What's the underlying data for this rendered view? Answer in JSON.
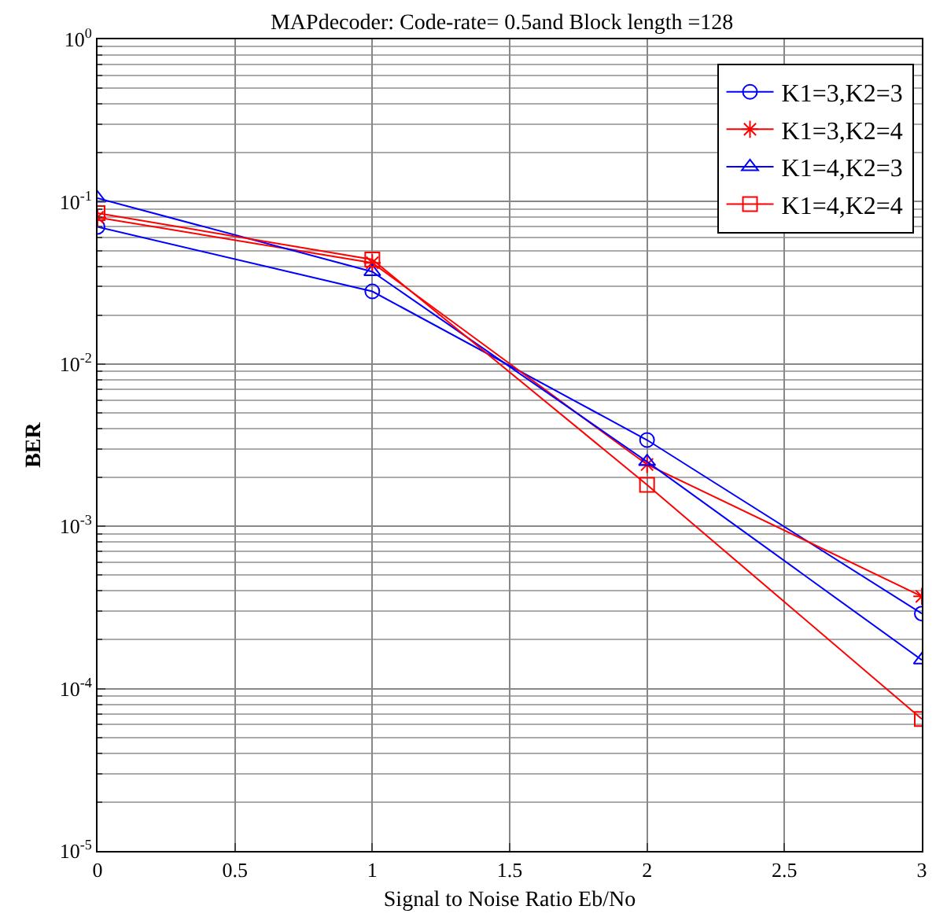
{
  "chart_data": {
    "type": "line",
    "title": "MAPdecoder: Code-rate= 0.5and Block length =128",
    "xlabel": "Signal to Noise Ratio Eb/No",
    "ylabel": "BER",
    "x": [
      0,
      1,
      2,
      3
    ],
    "series": [
      {
        "name": "K1=3,K2=3",
        "color": "#0000ff",
        "marker": "circle",
        "values": [
          0.07,
          0.028,
          0.0034,
          0.00029
        ]
      },
      {
        "name": "K1=3,K2=4",
        "color": "#ff0000",
        "marker": "cross",
        "values": [
          0.08,
          0.042,
          0.0024,
          0.00037
        ]
      },
      {
        "name": "K1=4,K2=3",
        "color": "#0000ff",
        "marker": "triangle",
        "values": [
          0.105,
          0.037,
          0.0025,
          0.00015
        ]
      },
      {
        "name": "K1=4,K2=4",
        "color": "#ff0000",
        "marker": "square",
        "values": [
          0.085,
          0.044,
          0.0018,
          6.5e-05
        ]
      }
    ],
    "log": "y",
    "xlim": [
      0,
      3
    ],
    "xticks": [
      0,
      0.5,
      1,
      1.5,
      2,
      2.5,
      3
    ],
    "ylim": [
      1e-05,
      1
    ],
    "yticks": [
      {
        "value": 1e-05,
        "label": "10$^{-5}$"
      },
      {
        "value": 0.0001,
        "label": "10$^{-4}$"
      },
      {
        "value": 0.001,
        "label": "10$^{-3}$"
      },
      {
        "value": 0.01,
        "label": "10$^{-2}$"
      },
      {
        "value": 0.1,
        "label": "10$^{-1}$"
      },
      {
        "value": 1,
        "label": "10$^{0}$"
      }
    ],
    "grid": true,
    "legend": "top right",
    "line_style": "solid"
  }
}
